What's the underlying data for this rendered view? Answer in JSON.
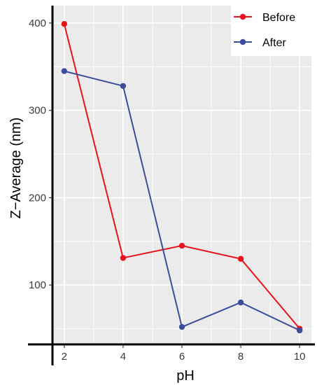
{
  "chart_data": {
    "type": "line",
    "x": [
      2,
      4,
      6,
      8,
      10
    ],
    "series": [
      {
        "name": "Before",
        "color": "#e8141c",
        "values": [
          399,
          131,
          145,
          130,
          50
        ]
      },
      {
        "name": "After",
        "color": "#3c4d9a",
        "values": [
          345,
          328,
          52,
          80,
          48
        ]
      }
    ],
    "xlabel": "pH",
    "ylabel": "Z−Average (nm)",
    "xticks": [
      "2",
      "4",
      "6",
      "8",
      "10"
    ],
    "yticks": [
      "100",
      "200",
      "300",
      "400"
    ],
    "xlim": [
      1.6,
      10.4
    ],
    "ylim": [
      32,
      420
    ],
    "grid": true,
    "legend_position": "top-right"
  },
  "colors": {
    "panel_background": "#ebebeb",
    "grid": "#ffffff"
  }
}
